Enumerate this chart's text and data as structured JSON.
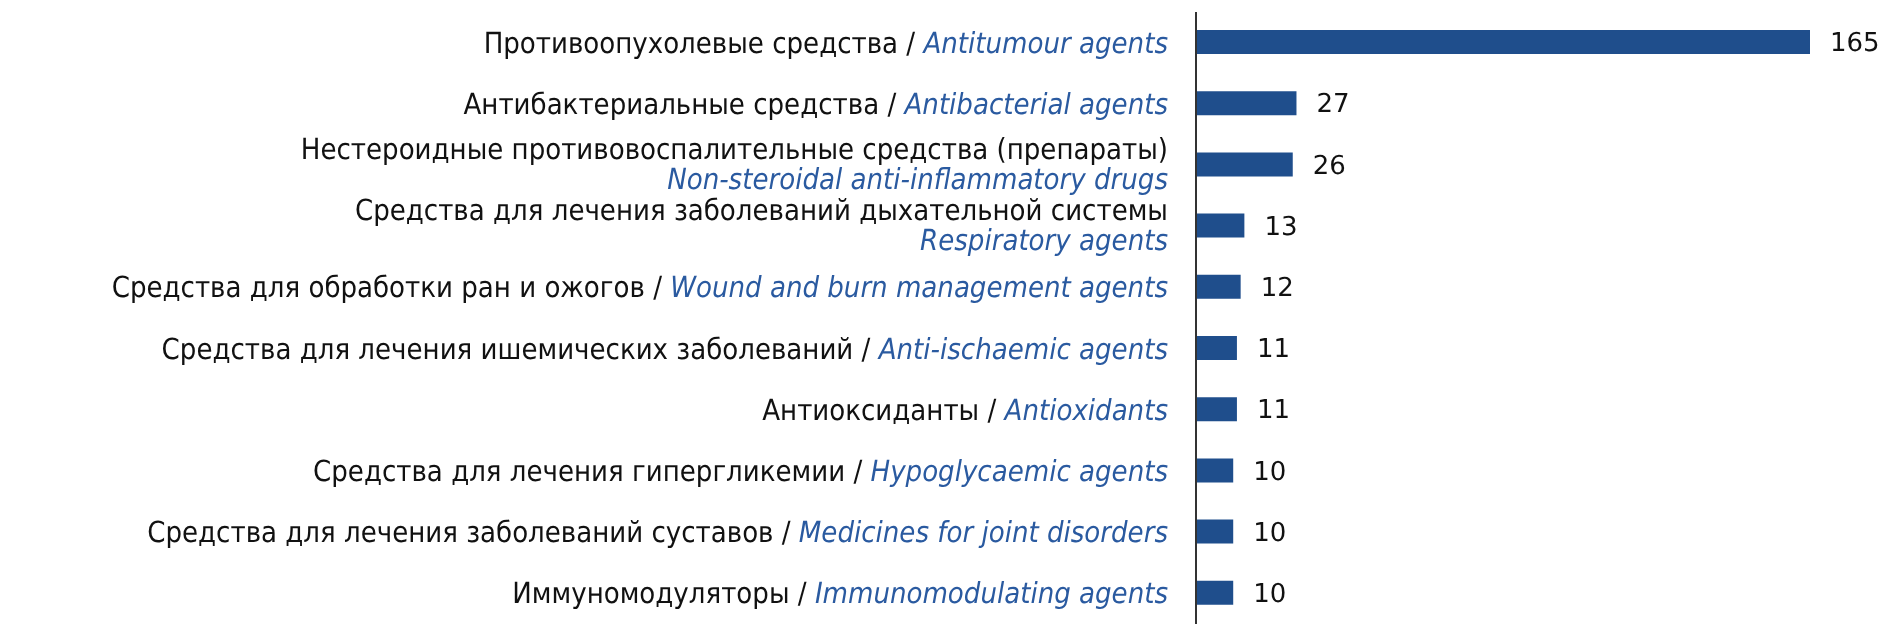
{
  "chart_data": {
    "type": "bar",
    "orientation": "horizontal",
    "categories": [
      "Противоопухолевые средства / Antitumour agents",
      "Антибактериальные средства / Antibacterial agents",
      "Нестероидные противовоспалительные средства (препараты)\nNon-steroidal anti-inflammatory drugs",
      "Средства для лечения заболеваний дыхательной системы\nRespiratory agents",
      "Средства для обработки ран и ожогов / Wound and burn management agents",
      "Средства для лечения ишемических заболеваний / Anti-ischaemic agents",
      "Антиоксиданты / Antioxidants",
      "Средства для лечения гипергликемии / Hypoglycaemic agents",
      "Средства для лечения заболеваний суставов / Medicines for joint disorders",
      "Иммуномодуляторы / Immunomodulating agents"
    ],
    "values": [
      165,
      27,
      26,
      13,
      12,
      11,
      11,
      10,
      10,
      10
    ],
    "color": "#1f4e8c",
    "data_labels": true,
    "tick_labels": "y"
  }
}
